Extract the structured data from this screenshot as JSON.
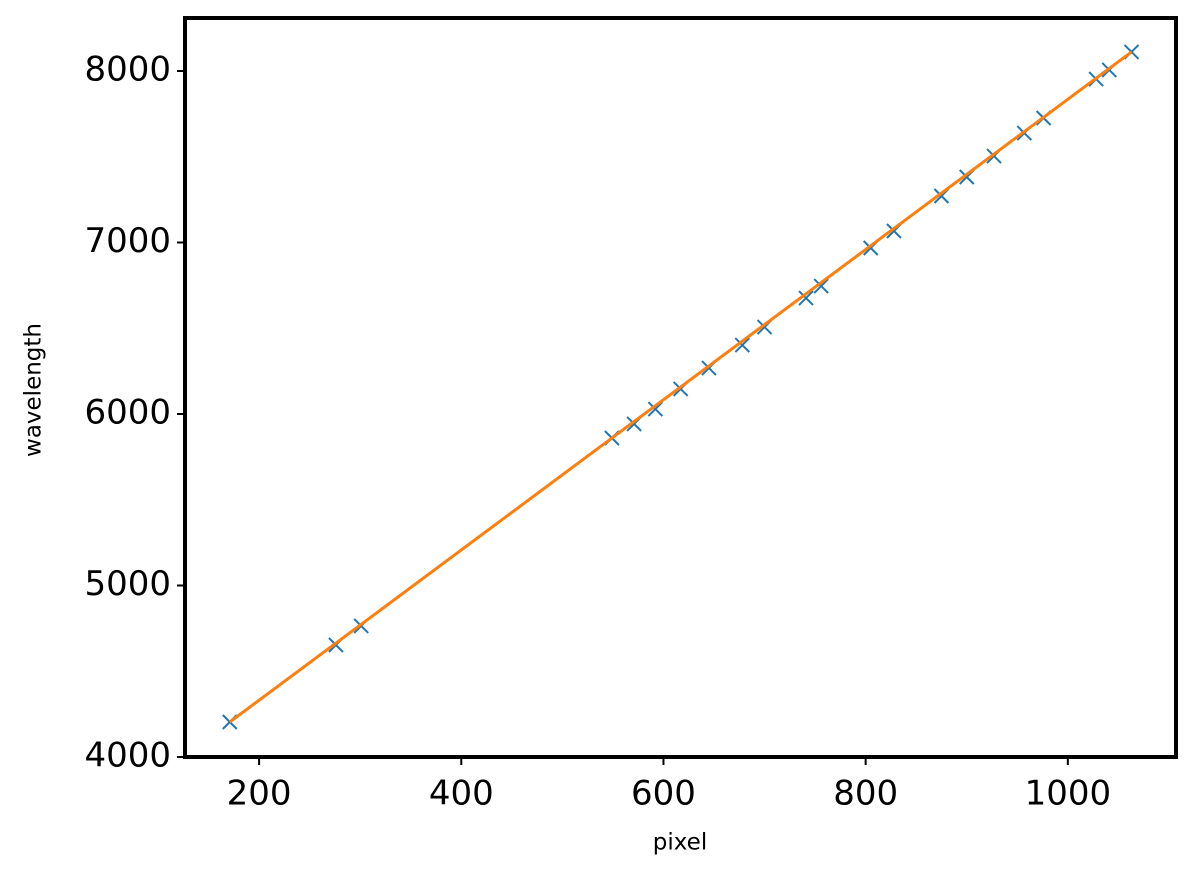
{
  "chart_data": {
    "type": "scatter",
    "xlabel": "pixel",
    "ylabel": "wavelength",
    "xlim": [
      126.7,
      1107
    ],
    "ylim": [
      4000,
      8309
    ],
    "xticks": [
      200,
      400,
      600,
      800,
      1000
    ],
    "yticks": [
      4000,
      5000,
      6000,
      7000,
      8000
    ],
    "series": [
      {
        "color": "#1f77b4",
        "marker": "x",
        "x": [
          171,
          276,
          301,
          549,
          571,
          592,
          617,
          645,
          678,
          700,
          741,
          756,
          805,
          828,
          875,
          900,
          927,
          957,
          976,
          1028,
          1041,
          1063
        ],
        "values": [
          4204,
          4653,
          4764,
          5860,
          5942,
          6029,
          6146,
          6268,
          6402,
          6507,
          6676,
          6746,
          6968,
          7067,
          7271,
          7382,
          7504,
          7638,
          7726,
          7953,
          8006,
          8111
        ]
      },
      {
        "color": "#ff7f0e",
        "marker": "line",
        "x": [
          171,
          1063
        ],
        "values": [
          4204,
          8111
        ]
      }
    ]
  }
}
